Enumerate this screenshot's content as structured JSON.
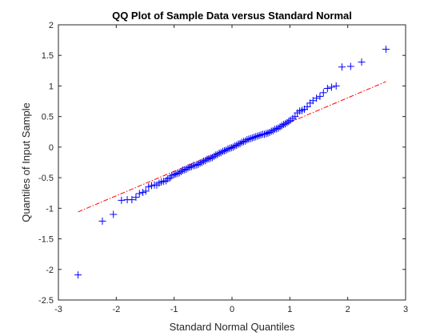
{
  "chart_data": {
    "type": "scatter",
    "title": "QQ Plot of Sample Data versus Standard Normal",
    "xlabel": "Standard Normal Quantiles",
    "ylabel": "Quantiles of Input Sample",
    "xlim": [
      -3,
      3
    ],
    "ylim": [
      -2.5,
      2
    ],
    "xticks": [
      -3,
      -2,
      -1,
      0,
      1,
      2,
      3
    ],
    "yticks": [
      -2.5,
      -2,
      -1.5,
      -1,
      -0.5,
      0,
      0.5,
      1,
      1.5,
      2
    ],
    "xtick_labels": [
      "-3",
      "-2",
      "-1",
      "0",
      "1",
      "2",
      "3"
    ],
    "ytick_labels": [
      "-2.5",
      "-2",
      "-1.5",
      "-1",
      "-0.5",
      "0",
      "0.5",
      "1",
      "1.5",
      "2"
    ],
    "grid": false,
    "marker": "+",
    "marker_color": "#0000ff",
    "ref_line": {
      "style": "dash-dot",
      "color": "#ff0000",
      "x": [
        -2.66,
        2.66
      ],
      "y": [
        -1.06,
        1.07
      ]
    },
    "x": [
      -2.66,
      -2.24,
      -2.05,
      -1.91,
      -1.81,
      -1.73,
      -1.66,
      -1.6,
      -1.54,
      -1.49,
      -1.44,
      -1.39,
      -1.34,
      -1.3,
      -1.26,
      -1.22,
      -1.18,
      -1.14,
      -1.11,
      -1.07,
      -1.04,
      -1.0,
      -0.97,
      -0.94,
      -0.91,
      -0.88,
      -0.85,
      -0.82,
      -0.79,
      -0.76,
      -0.73,
      -0.7,
      -0.67,
      -0.64,
      -0.61,
      -0.58,
      -0.55,
      -0.52,
      -0.49,
      -0.46,
      -0.43,
      -0.4,
      -0.37,
      -0.34,
      -0.31,
      -0.28,
      -0.25,
      -0.22,
      -0.19,
      -0.16,
      -0.13,
      -0.1,
      -0.07,
      -0.04,
      -0.01,
      0.02,
      0.05,
      0.08,
      0.11,
      0.14,
      0.17,
      0.2,
      0.23,
      0.26,
      0.29,
      0.32,
      0.35,
      0.38,
      0.41,
      0.44,
      0.47,
      0.5,
      0.53,
      0.56,
      0.59,
      0.62,
      0.65,
      0.68,
      0.71,
      0.74,
      0.77,
      0.8,
      0.83,
      0.86,
      0.89,
      0.92,
      0.95,
      0.98,
      1.01,
      1.05,
      1.09,
      1.13,
      1.17,
      1.21,
      1.25,
      1.3,
      1.35,
      1.4,
      1.46,
      1.52,
      1.58,
      1.65,
      1.72,
      1.8,
      1.9,
      2.05,
      2.24,
      2.66
    ],
    "y": [
      -2.09,
      -1.21,
      -1.1,
      -0.87,
      -0.86,
      -0.86,
      -0.82,
      -0.76,
      -0.74,
      -0.72,
      -0.65,
      -0.63,
      -0.62,
      -0.62,
      -0.59,
      -0.57,
      -0.56,
      -0.55,
      -0.52,
      -0.5,
      -0.47,
      -0.45,
      -0.44,
      -0.43,
      -0.42,
      -0.4,
      -0.38,
      -0.37,
      -0.36,
      -0.34,
      -0.33,
      -0.32,
      -0.3,
      -0.3,
      -0.29,
      -0.28,
      -0.26,
      -0.25,
      -0.23,
      -0.22,
      -0.2,
      -0.19,
      -0.18,
      -0.17,
      -0.15,
      -0.13,
      -0.12,
      -0.1,
      -0.09,
      -0.07,
      -0.06,
      -0.05,
      -0.03,
      -0.02,
      -0.01,
      0.0,
      0.02,
      0.03,
      0.05,
      0.06,
      0.08,
      0.09,
      0.1,
      0.12,
      0.13,
      0.14,
      0.15,
      0.16,
      0.17,
      0.18,
      0.19,
      0.2,
      0.21,
      0.21,
      0.22,
      0.23,
      0.24,
      0.26,
      0.27,
      0.29,
      0.3,
      0.31,
      0.33,
      0.35,
      0.37,
      0.38,
      0.4,
      0.42,
      0.44,
      0.47,
      0.5,
      0.56,
      0.59,
      0.6,
      0.62,
      0.66,
      0.72,
      0.76,
      0.8,
      0.83,
      0.89,
      0.96,
      0.98,
      1.0,
      1.31,
      1.32,
      1.39,
      1.6
    ]
  }
}
